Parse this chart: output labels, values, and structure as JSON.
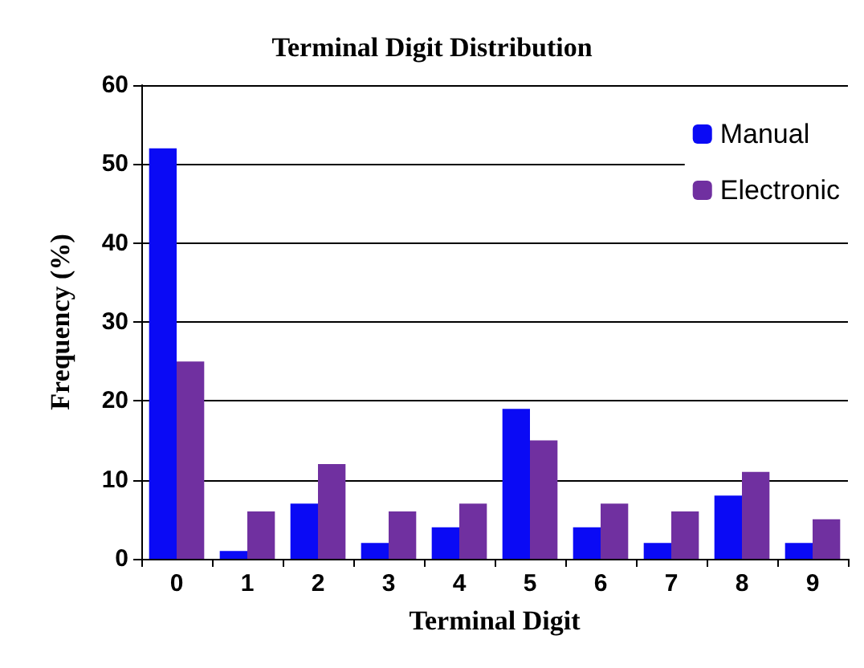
{
  "chart_data": {
    "type": "bar",
    "title": "Terminal Digit Distribution",
    "xlabel": "Terminal Digit",
    "ylabel": "Frequency (%)",
    "categories": [
      "0",
      "1",
      "2",
      "3",
      "4",
      "5",
      "6",
      "7",
      "8",
      "9"
    ],
    "series": [
      {
        "name": "Manual",
        "color": "#0a0af5",
        "values": [
          52,
          1,
          7,
          2,
          4,
          19,
          4,
          2,
          8,
          2
        ]
      },
      {
        "name": "Electronic",
        "color": "#7030a0",
        "values": [
          25,
          6,
          12,
          6,
          7,
          15,
          7,
          6,
          11,
          5
        ]
      }
    ],
    "ylim": [
      0,
      60
    ],
    "yticks": [
      0,
      10,
      20,
      30,
      40,
      50,
      60
    ],
    "grid": "y",
    "legend": "top right"
  }
}
